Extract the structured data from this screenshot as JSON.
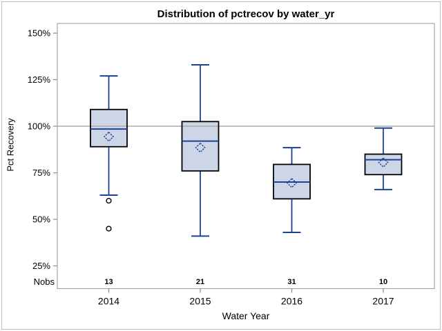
{
  "chart_data": {
    "type": "boxplot",
    "title": "Distribution of pctrecov by water_yr",
    "xlabel": "Water Year",
    "ylabel": "Pct Recovery",
    "nobs_label": "Nobs",
    "y_tick_labels": [
      "150%",
      "125%",
      "100%",
      "75%",
      "50%",
      "25%"
    ],
    "y_tick_values": [
      150,
      125,
      100,
      75,
      50,
      25
    ],
    "ylim": [
      12.8,
      155.2
    ],
    "reference_line": 100,
    "grid": false,
    "categories": [
      "2014",
      "2015",
      "2016",
      "2017"
    ],
    "nobs": [
      13,
      21,
      31,
      10
    ],
    "series": [
      {
        "category": "2014",
        "n": 13,
        "whisker_low": 63,
        "q1": 89,
        "median": 98.5,
        "mean": 94.4,
        "q3": 109,
        "whisker_high": 127,
        "outliers": [
          60,
          45
        ]
      },
      {
        "category": "2015",
        "n": 21,
        "whisker_low": 41,
        "q1": 76,
        "median": 92,
        "mean": 88.5,
        "q3": 102.5,
        "whisker_high": 133,
        "outliers": []
      },
      {
        "category": "2016",
        "n": 31,
        "whisker_low": 43,
        "q1": 61,
        "median": 70,
        "mean": 69.5,
        "q3": 79.5,
        "whisker_high": 88.5,
        "outliers": []
      },
      {
        "category": "2017",
        "n": 10,
        "whisker_low": 66,
        "q1": 74,
        "median": 82,
        "mean": 80.5,
        "q3": 85,
        "whisker_high": 99,
        "outliers": []
      }
    ],
    "colors": {
      "box_fill": "#ccd6e6",
      "box_border": "#000000",
      "line_blue": "#1c4297",
      "reference_gray": "#ababab",
      "frame_gray": "#a7a7a7",
      "tick_gray": "#8a8a8a",
      "outlier_black": "#000000",
      "text": "#000000",
      "background": "#ffffff"
    }
  }
}
